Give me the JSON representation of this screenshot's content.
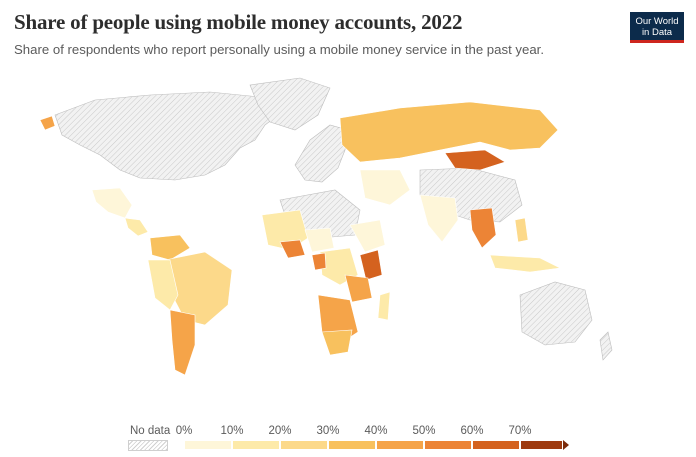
{
  "header": {
    "title": "Share of people using mobile money accounts, 2022",
    "subtitle": "Share of respondents who report personally using a mobile money service in the past year.",
    "logo_line1": "Our World",
    "logo_line2": "in Data"
  },
  "legend": {
    "no_data_label": "No data",
    "ticks": [
      "0%",
      "10%",
      "20%",
      "30%",
      "40%",
      "50%",
      "60%",
      "70%"
    ],
    "colors": [
      "#fef6d9",
      "#fdeaa9",
      "#fcd98a",
      "#f8c15e",
      "#f5a449",
      "#ec8436",
      "#d4621f",
      "#9e3a0f"
    ],
    "no_data_pattern": "hatched-grey"
  },
  "map_colors": {
    "no_data": "#ececec",
    "land_outline": "#b9b9b9"
  }
}
